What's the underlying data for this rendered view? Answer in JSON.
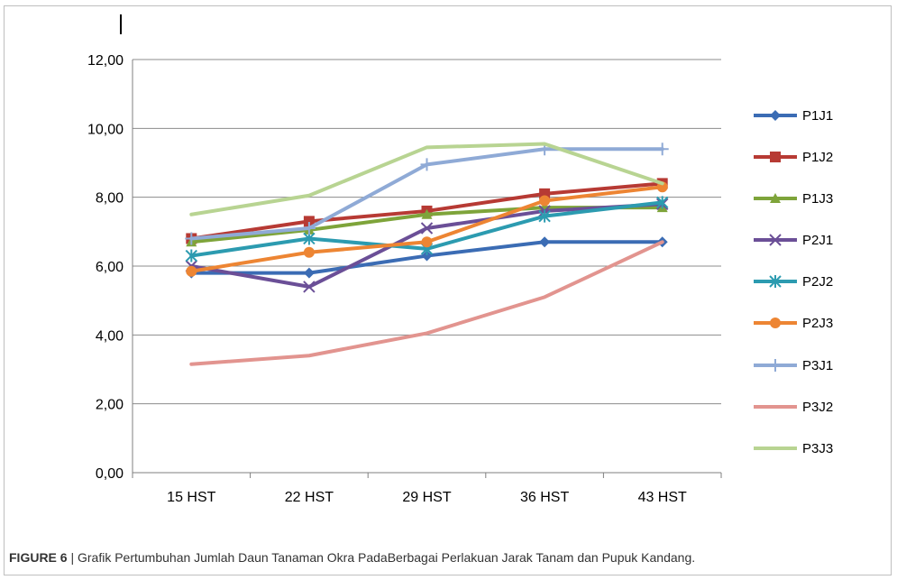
{
  "chart_data": {
    "type": "line",
    "categories": [
      "15 HST",
      "22 HST",
      "29 HST",
      "36 HST",
      "43 HST"
    ],
    "ylim": [
      0,
      12
    ],
    "ytick_labels": [
      "0,00",
      "2,00",
      "4,00",
      "6,00",
      "8,00",
      "10,00",
      "12,00"
    ],
    "grid": true,
    "legend_position": "right",
    "series": [
      {
        "name": "P1J1",
        "color": "#3b6cb4",
        "marker": "diamond",
        "values": [
          5.8,
          5.8,
          6.3,
          6.7,
          6.7
        ]
      },
      {
        "name": "P1J2",
        "color": "#b73a34",
        "marker": "square",
        "values": [
          6.8,
          7.3,
          7.6,
          8.1,
          8.4
        ]
      },
      {
        "name": "P1J3",
        "color": "#7ea43a",
        "marker": "triangle",
        "values": [
          6.7,
          7.05,
          7.5,
          7.7,
          7.7
        ]
      },
      {
        "name": "P2J1",
        "color": "#6b4f97",
        "marker": "x",
        "values": [
          6.0,
          5.4,
          7.1,
          7.6,
          7.8
        ]
      },
      {
        "name": "P2J2",
        "color": "#2c9bb0",
        "marker": "star",
        "values": [
          6.3,
          6.8,
          6.5,
          7.45,
          7.85
        ]
      },
      {
        "name": "P2J3",
        "color": "#ed8533",
        "marker": "circle",
        "values": [
          5.85,
          6.4,
          6.7,
          7.9,
          8.3
        ]
      },
      {
        "name": "P3J1",
        "color": "#8faad6",
        "marker": "plus",
        "values": [
          6.8,
          7.1,
          8.95,
          9.4,
          9.4
        ]
      },
      {
        "name": "P3J2",
        "color": "#e2948f",
        "marker": "none",
        "values": [
          3.15,
          3.4,
          4.05,
          5.1,
          6.7
        ]
      },
      {
        "name": "P3J3",
        "color": "#b8d492",
        "marker": "none",
        "values": [
          7.5,
          8.05,
          9.45,
          9.55,
          8.4
        ]
      }
    ]
  },
  "caption": {
    "label": "FIGURE 6",
    "text": " | Grafik Pertumbuhan Jumlah Daun Tanaman Okra PadaBerbagai Perlakuan Jarak Tanam dan Pupuk Kandang."
  }
}
